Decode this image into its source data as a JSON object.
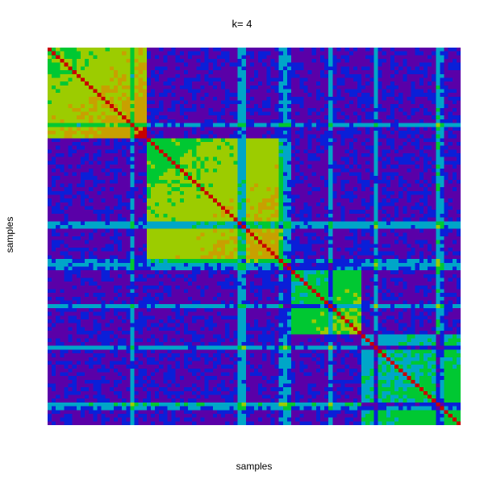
{
  "chart_data": {
    "type": "heatmap",
    "title": "k= 4",
    "xlabel": "samples",
    "ylabel": "samples",
    "legend": "none",
    "grid": false,
    "axis_ticks": false,
    "matrix": "symmetric sample-by-sample co-clustering similarity (consensus) matrix",
    "n_clusters": 4,
    "cluster_size_fraction": [
      0.235,
      0.34,
      0.185,
      0.24
    ],
    "within_cluster_value": {
      "cluster_1": 0.75,
      "cluster_2": 0.7,
      "cluster_3": 0.55,
      "cluster_4": 0.48
    },
    "between_cluster_value": 0.12,
    "diagonal_value": 1.0,
    "value_range": [
      0,
      1
    ],
    "colormap": [
      "#5a00a8",
      "#0a1fd8",
      "#00a6c8",
      "#00c832",
      "#9ccc00",
      "#c8a000",
      "#c80000"
    ]
  }
}
